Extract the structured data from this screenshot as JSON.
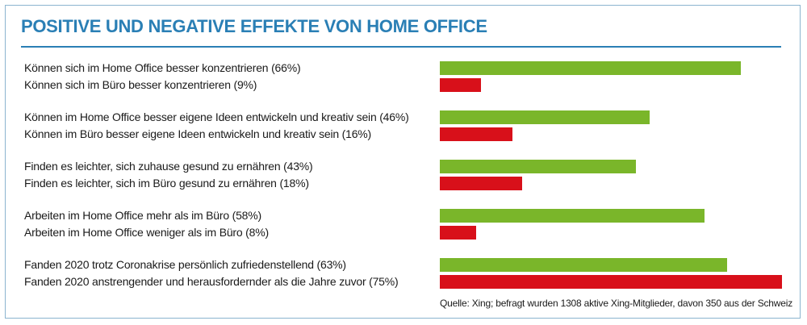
{
  "title": "POSITIVE UND NEGATIVE EFFEKTE VON HOME OFFICE",
  "source": "Quelle: Xing; befragt wurden 1308 aktive Xing-Mitglieder, davon 350 aus der Schweiz",
  "colors": {
    "positive": "#7ab62a",
    "negative": "#d8101a",
    "title": "#2a7fb5"
  },
  "chart_data": {
    "type": "bar",
    "orientation": "horizontal",
    "title": "POSITIVE UND NEGATIVE EFFEKTE VON HOME OFFICE",
    "xlim": [
      0,
      75
    ],
    "unit": "%",
    "grid": false,
    "groups": [
      {
        "items": [
          {
            "label": "Können sich im Home Office besser konzentrieren (66%)",
            "value": 66,
            "kind": "positive"
          },
          {
            "label": "Können sich im Büro besser konzentrieren (9%)",
            "value": 9,
            "kind": "negative"
          }
        ]
      },
      {
        "items": [
          {
            "label": "Können im Home Office besser eigene Ideen entwickeln und kreativ sein (46%)",
            "value": 46,
            "kind": "positive"
          },
          {
            "label": "Können im Büro besser eigene Ideen entwickeln und kreativ sein (16%)",
            "value": 16,
            "kind": "negative"
          }
        ]
      },
      {
        "items": [
          {
            "label": "Finden es leichter, sich zuhause gesund zu ernähren (43%)",
            "value": 43,
            "kind": "positive"
          },
          {
            "label": "Finden es leichter, sich im Büro gesund zu ernähren (18%)",
            "value": 18,
            "kind": "negative"
          }
        ]
      },
      {
        "items": [
          {
            "label": "Arbeiten im Home Office mehr als im Büro (58%)",
            "value": 58,
            "kind": "positive"
          },
          {
            "label": "Arbeiten im Home Office weniger als im Büro (8%)",
            "value": 8,
            "kind": "negative"
          }
        ]
      },
      {
        "items": [
          {
            "label": "Fanden 2020 trotz Coronakrise persönlich zufriedenstellend (63%)",
            "value": 63,
            "kind": "positive"
          },
          {
            "label": "Fanden 2020 anstrengender und herausfordernder als die Jahre zuvor (75%)",
            "value": 75,
            "kind": "negative"
          }
        ]
      }
    ]
  }
}
